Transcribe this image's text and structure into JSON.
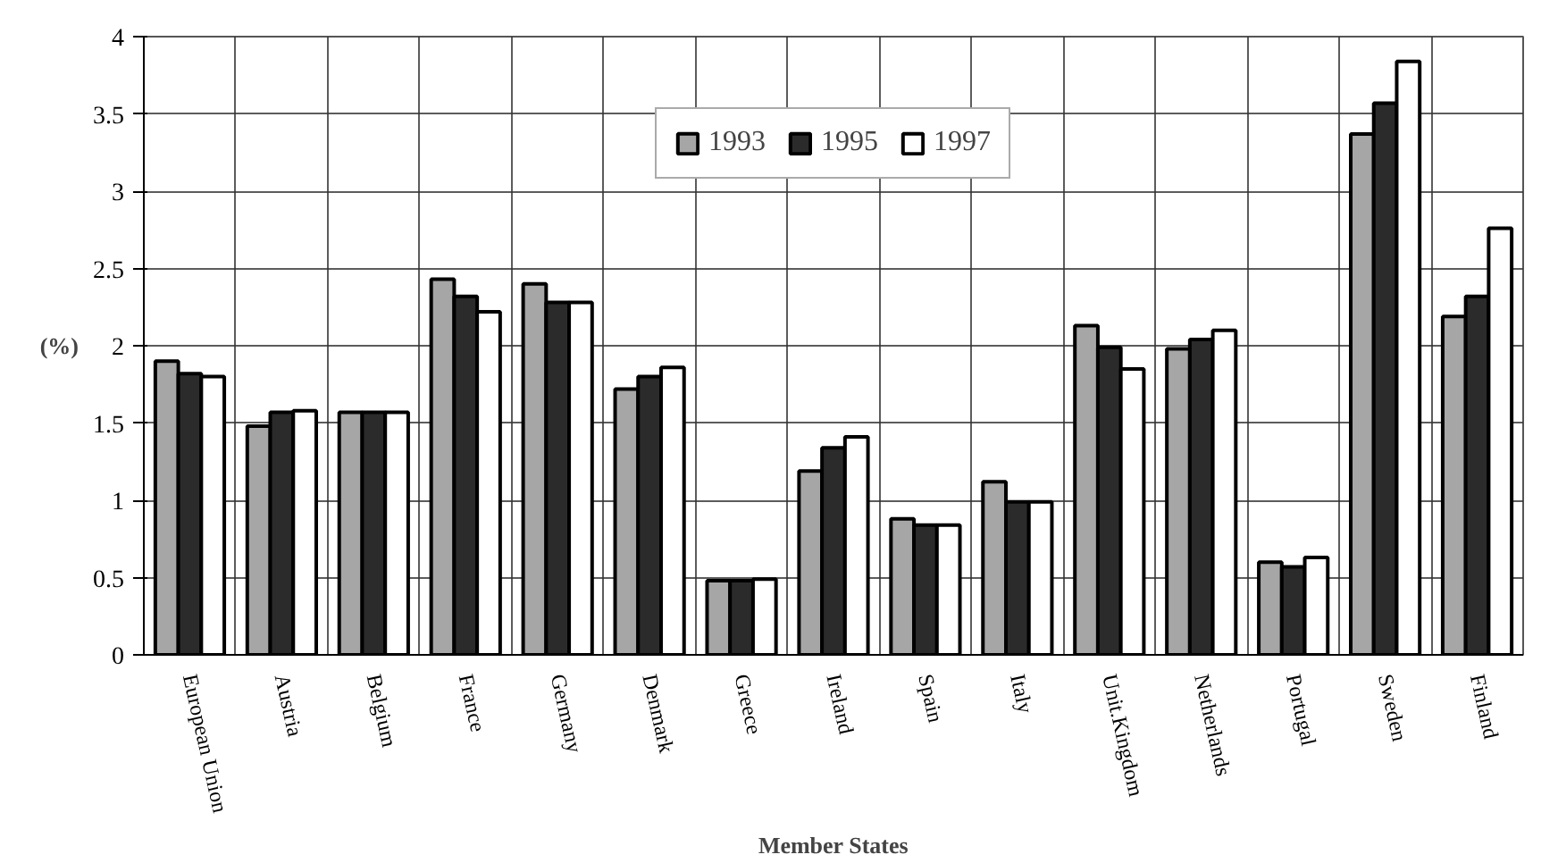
{
  "chart_data": {
    "type": "bar",
    "xlabel": "Member States",
    "ylabel": "(%)",
    "categories": [
      "European Union",
      "Austria",
      "Belgium",
      "France",
      "Germany",
      "Denmark",
      "Greece",
      "Ireland",
      "Spain",
      "Italy",
      "Unit.Kingdom",
      "Netherlands",
      "Portugal",
      "Sweden",
      "Finland"
    ],
    "series": [
      {
        "name": "1993",
        "color": "#a6a6a6",
        "values": [
          1.9,
          1.48,
          1.57,
          2.43,
          2.4,
          1.72,
          0.48,
          1.19,
          0.88,
          1.12,
          2.13,
          1.98,
          0.6,
          3.37,
          2.19
        ]
      },
      {
        "name": "1995",
        "color": "#2b2b2b",
        "values": [
          1.82,
          1.57,
          1.57,
          2.32,
          2.28,
          1.8,
          0.48,
          1.34,
          0.84,
          0.99,
          1.99,
          2.04,
          0.57,
          3.57,
          2.32
        ]
      },
      {
        "name": "1997",
        "color": "#ffffff",
        "values": [
          1.8,
          1.58,
          1.57,
          2.22,
          2.28,
          1.86,
          0.49,
          1.41,
          0.84,
          0.99,
          1.85,
          2.1,
          0.63,
          3.84,
          2.76
        ]
      }
    ],
    "ylim": [
      0,
      4
    ],
    "yticks": [
      0,
      0.5,
      1,
      1.5,
      2,
      2.5,
      3,
      3.5,
      4
    ],
    "grid": true,
    "legend": "top"
  }
}
